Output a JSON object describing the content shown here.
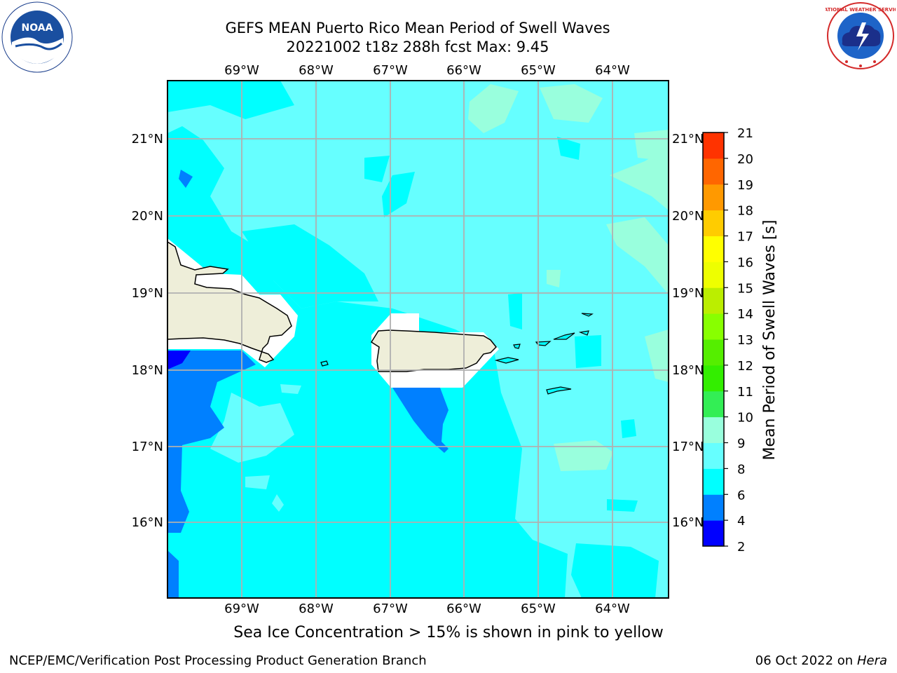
{
  "title": {
    "line1": "GEFS MEAN Puerto Rico Mean Period of Swell Waves",
    "line2": "20221002 t18z 288h fcst   Max: 9.45"
  },
  "map": {
    "lon_labels": [
      "69°W",
      "68°W",
      "67°W",
      "66°W",
      "65°W",
      "64°W"
    ],
    "lat_labels": [
      "21°N",
      "20°N",
      "19°N",
      "18°N",
      "17°N",
      "16°N"
    ]
  },
  "colorbar": {
    "label": "Mean Period of Swell Waves [s]",
    "ticks": [
      "2",
      "4",
      "6",
      "8",
      "9",
      "10",
      "11",
      "12",
      "13",
      "14",
      "15",
      "16",
      "17",
      "18",
      "19",
      "20",
      "21"
    ],
    "colors": [
      "#0000ff",
      "#0080ff",
      "#00ffff",
      "#66ffff",
      "#99ffdd",
      "#33ee55",
      "#33ee00",
      "#55ee00",
      "#88ff00",
      "#bbee00",
      "#eeff00",
      "#ffff00",
      "#ffcc00",
      "#ff9900",
      "#ff6600",
      "#ff3300",
      "#ff0000"
    ]
  },
  "footer": {
    "ice_note": "Sea Ice Concentration > 15% is shown in pink to yellow",
    "credit": "NCEP/EMC/Verification Post Processing Product Generation Branch",
    "date": "06 Oct 2022 on",
    "host": "Hera"
  },
  "logos": {
    "noaa_text": "NOAA",
    "nws_text": "NATIONAL WEATHER SERVICE"
  }
}
